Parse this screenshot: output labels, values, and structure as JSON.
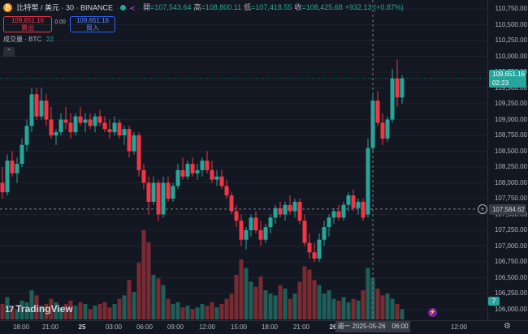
{
  "header": {
    "coin_glyph": "₿",
    "title": "比特幣 / 美元 · 30 · BINANCE",
    "ohlc": [
      {
        "key": "開",
        "value": "=107,543.64"
      },
      {
        "key": "高",
        "value": "=108,800.11"
      },
      {
        "key": "低",
        "value": "=107,418.55"
      },
      {
        "key": "收",
        "value": "=108,425.68"
      }
    ],
    "change": "+932.13 (+0.87%)",
    "live_symbol": "≺"
  },
  "trade": {
    "sell_price": "109,651.16",
    "sell_label": "賣出",
    "spread": "0.00",
    "buy_price": "109,651.16",
    "buy_label": "買入"
  },
  "volume_legend": {
    "label": "成交量 · BTC",
    "value": "22"
  },
  "collapse_glyph": "⌃",
  "price_axis": [
    "110,750.00",
    "110,500.00",
    "110,250.00",
    "110,000.00",
    "109,750.00",
    "109,500.00",
    "109,250.00",
    "109,000.00",
    "108,750.00",
    "108,500.00",
    "108,250.00",
    "108,000.00",
    "107,750.00",
    "107,500.00",
    "107,250.00",
    "107,000.00",
    "106,750.00",
    "106,500.00",
    "106,250.00",
    "106,000.00"
  ],
  "last_price": {
    "value": "109,651.16",
    "countdown": "02:23"
  },
  "crosshair": {
    "price": "107,584.62",
    "time": "週一 2025-05-26　06:00",
    "plus_glyph": "+"
  },
  "time_axis": [
    {
      "label": "18:00",
      "bold": false
    },
    {
      "label": "21:00",
      "bold": false
    },
    {
      "label": "25",
      "bold": true
    },
    {
      "label": "03:00",
      "bold": false
    },
    {
      "label": "06:00",
      "bold": false
    },
    {
      "label": "09:00",
      "bold": false
    },
    {
      "label": "12:00",
      "bold": false
    },
    {
      "label": "15:00",
      "bold": false
    },
    {
      "label": "18:00",
      "bold": false
    },
    {
      "label": "21:00",
      "bold": false
    },
    {
      "label": "26",
      "bold": true
    },
    {
      "label": "12:00",
      "bold": false
    }
  ],
  "logo": {
    "mark": "17",
    "text": "TradingView"
  },
  "volume_badge": "7",
  "icons": {
    "flash": "⚡",
    "settings": "⚙"
  },
  "colors": {
    "up": "#26a69a",
    "down": "#f23645",
    "up_vol": "#1f5f5a",
    "down_vol": "#7a2a31",
    "background": "#131722"
  },
  "chart_data": {
    "type": "candlestick",
    "interval": "30",
    "ylim": [
      106000,
      110750
    ],
    "candles": [
      [
        108000,
        108250,
        107750,
        107850
      ],
      [
        107850,
        108450,
        107800,
        108350
      ],
      [
        108350,
        108500,
        108100,
        108150
      ],
      [
        108150,
        108400,
        108000,
        108300
      ],
      [
        108300,
        108700,
        108250,
        108600
      ],
      [
        108600,
        109000,
        108500,
        108900
      ],
      [
        108900,
        109500,
        108800,
        109400
      ],
      [
        109400,
        109500,
        109000,
        109050
      ],
      [
        109050,
        109500,
        109000,
        109300
      ],
      [
        109300,
        109400,
        108900,
        109000
      ],
      [
        109000,
        109200,
        108700,
        108750
      ],
      [
        108750,
        108850,
        108600,
        108800
      ],
      [
        108800,
        109100,
        108750,
        109000
      ],
      [
        109000,
        109200,
        108850,
        108950
      ],
      [
        108950,
        109100,
        108700,
        108800
      ],
      [
        108800,
        109100,
        108750,
        109050
      ],
      [
        109050,
        109200,
        108900,
        108950
      ],
      [
        108950,
        109100,
        108800,
        109000
      ],
      [
        109000,
        109100,
        108850,
        108900
      ],
      [
        108900,
        109100,
        108800,
        109050
      ],
      [
        109050,
        109150,
        108900,
        108950
      ],
      [
        108950,
        109050,
        108800,
        108850
      ],
      [
        108850,
        109000,
        108700,
        108800
      ],
      [
        108800,
        109050,
        108750,
        108950
      ],
      [
        108950,
        109000,
        108700,
        108750
      ],
      [
        108750,
        108900,
        108600,
        108850
      ],
      [
        108850,
        108900,
        108400,
        108500
      ],
      [
        108500,
        108800,
        108450,
        108750
      ],
      [
        108750,
        108800,
        108100,
        108200
      ],
      [
        108200,
        108300,
        107900,
        108000
      ],
      [
        108000,
        108100,
        107500,
        107700
      ],
      [
        107700,
        108100,
        107650,
        108000
      ],
      [
        108000,
        108050,
        107400,
        107500
      ],
      [
        107500,
        108100,
        107450,
        108000
      ],
      [
        108000,
        108100,
        107700,
        107750
      ],
      [
        107750,
        108000,
        107700,
        107950
      ],
      [
        107950,
        108300,
        107900,
        108200
      ],
      [
        108200,
        108400,
        108050,
        108100
      ],
      [
        108100,
        108350,
        108050,
        108300
      ],
      [
        108300,
        108400,
        108100,
        108150
      ],
      [
        108150,
        108300,
        108050,
        108200
      ],
      [
        108200,
        108400,
        108100,
        108350
      ],
      [
        108350,
        108500,
        108150,
        108200
      ],
      [
        108200,
        108350,
        108000,
        108050
      ],
      [
        108050,
        108200,
        107950,
        108100
      ],
      [
        108100,
        108200,
        107900,
        107950
      ],
      [
        107950,
        108050,
        107750,
        107800
      ],
      [
        107800,
        107850,
        107500,
        107550
      ],
      [
        107550,
        107650,
        107300,
        107400
      ],
      [
        107400,
        107500,
        107000,
        107100
      ],
      [
        107100,
        107300,
        106950,
        107250
      ],
      [
        107250,
        107500,
        107150,
        107450
      ],
      [
        107450,
        107550,
        107200,
        107250
      ],
      [
        107250,
        107400,
        107000,
        107100
      ],
      [
        107100,
        107350,
        107050,
        107300
      ],
      [
        107300,
        107500,
        107200,
        107450
      ],
      [
        107450,
        107650,
        107350,
        107600
      ],
      [
        107600,
        107700,
        107450,
        107500
      ],
      [
        107500,
        107700,
        107400,
        107650
      ],
      [
        107650,
        107800,
        107500,
        107550
      ],
      [
        107550,
        107750,
        107450,
        107700
      ],
      [
        107700,
        107750,
        107350,
        107400
      ],
      [
        107400,
        107500,
        107000,
        107050
      ],
      [
        107050,
        107200,
        106800,
        106900
      ],
      [
        106900,
        107050,
        106750,
        106800
      ],
      [
        106800,
        107200,
        106750,
        107100
      ],
      [
        107100,
        107400,
        107000,
        107300
      ],
      [
        107300,
        107500,
        107150,
        107450
      ],
      [
        107450,
        107600,
        107350,
        107550
      ],
      [
        107550,
        107650,
        107400,
        107450
      ],
      [
        107450,
        107700,
        107400,
        107650
      ],
      [
        107650,
        107850,
        107550,
        107800
      ],
      [
        107800,
        107900,
        107550,
        107600
      ],
      [
        107600,
        107750,
        107500,
        107700
      ],
      [
        107700,
        107750,
        107400,
        107450
      ],
      [
        107500,
        108700,
        107450,
        108550
      ],
      [
        108550,
        109400,
        108500,
        109300
      ],
      [
        109300,
        109450,
        108900,
        108950
      ],
      [
        108950,
        109100,
        108600,
        108700
      ],
      [
        108700,
        109050,
        108650,
        109000
      ],
      [
        109000,
        109800,
        108950,
        109650
      ],
      [
        109650,
        109950,
        109200,
        109350
      ],
      [
        109350,
        109700,
        109250,
        109651
      ]
    ],
    "volume": [
      18,
      26,
      14,
      12,
      22,
      20,
      34,
      28,
      16,
      18,
      24,
      20,
      14,
      18,
      22,
      16,
      20,
      18,
      12,
      16,
      18,
      20,
      14,
      18,
      24,
      28,
      46,
      32,
      66,
      104,
      90,
      52,
      48,
      40,
      24,
      18,
      20,
      14,
      16,
      12,
      14,
      18,
      16,
      20,
      14,
      18,
      24,
      30,
      52,
      70,
      60,
      44,
      38,
      50,
      34,
      30,
      28,
      40,
      36,
      24,
      30,
      44,
      62,
      58,
      46,
      40,
      30,
      34,
      24,
      22,
      26,
      20,
      24,
      22,
      34,
      60,
      48,
      36,
      28,
      30,
      24,
      18,
      12
    ]
  }
}
